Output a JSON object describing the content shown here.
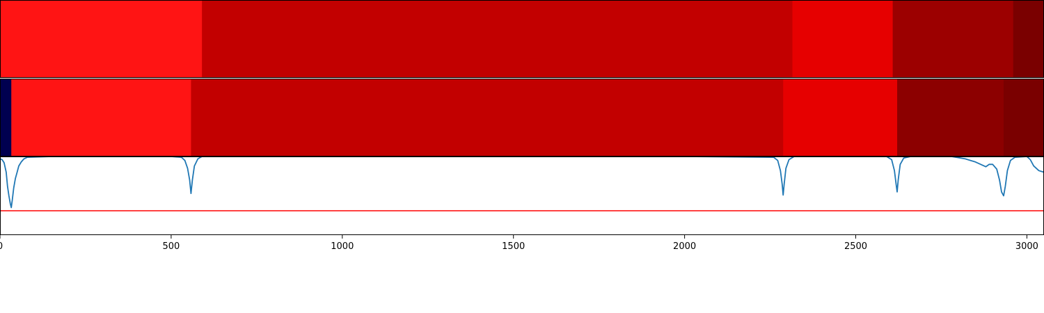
{
  "chart_data": {
    "type": "heatmap",
    "xlim": [
      0,
      3050
    ],
    "x_ticks": [
      0,
      500,
      1000,
      1500,
      2000,
      2500,
      3000
    ],
    "x_tick_labels": [
      "0",
      "500",
      "1000",
      "1500",
      "2000",
      "2500",
      "3000"
    ],
    "segment_rows": [
      {
        "segments": [
          {
            "start": 0,
            "end": 590,
            "color": "#ff1414"
          },
          {
            "start": 590,
            "end": 2315,
            "color": "#c20000"
          },
          {
            "start": 2315,
            "end": 2608,
            "color": "#e60000"
          },
          {
            "start": 2608,
            "end": 2960,
            "color": "#9c0000"
          },
          {
            "start": 2960,
            "end": 3050,
            "color": "#7a0000"
          }
        ]
      },
      {
        "segments": [
          {
            "start": 0,
            "end": 33,
            "color": "#000050"
          },
          {
            "start": 33,
            "end": 558,
            "color": "#ff1414"
          },
          {
            "start": 558,
            "end": 2288,
            "color": "#c20000"
          },
          {
            "start": 2288,
            "end": 2621,
            "color": "#e60000"
          },
          {
            "start": 2621,
            "end": 2932,
            "color": "#8c0000"
          },
          {
            "start": 2932,
            "end": 3050,
            "color": "#7a0000"
          }
        ]
      }
    ],
    "signal": {
      "color": "#1f77b4",
      "ylim": [
        0,
        1
      ],
      "threshold": 0.31,
      "threshold_color": "#ff0000",
      "points": [
        [
          0,
          0.97
        ],
        [
          6,
          0.96
        ],
        [
          12,
          0.92
        ],
        [
          18,
          0.8
        ],
        [
          22,
          0.62
        ],
        [
          26,
          0.5
        ],
        [
          30,
          0.4
        ],
        [
          33,
          0.35
        ],
        [
          36,
          0.45
        ],
        [
          40,
          0.6
        ],
        [
          45,
          0.72
        ],
        [
          50,
          0.8
        ],
        [
          55,
          0.88
        ],
        [
          62,
          0.93
        ],
        [
          70,
          0.97
        ],
        [
          80,
          0.99
        ],
        [
          150,
          1.0
        ],
        [
          300,
          1.0
        ],
        [
          500,
          1.0
        ],
        [
          530,
          0.99
        ],
        [
          540,
          0.95
        ],
        [
          548,
          0.85
        ],
        [
          554,
          0.7
        ],
        [
          558,
          0.53
        ],
        [
          562,
          0.7
        ],
        [
          568,
          0.88
        ],
        [
          578,
          0.97
        ],
        [
          590,
          1.0
        ],
        [
          1000,
          1.0
        ],
        [
          1500,
          1.0
        ],
        [
          2000,
          1.0
        ],
        [
          2260,
          0.99
        ],
        [
          2272,
          0.95
        ],
        [
          2280,
          0.82
        ],
        [
          2285,
          0.65
        ],
        [
          2288,
          0.51
        ],
        [
          2291,
          0.65
        ],
        [
          2296,
          0.85
        ],
        [
          2305,
          0.96
        ],
        [
          2320,
          1.0
        ],
        [
          2590,
          1.0
        ],
        [
          2605,
          0.96
        ],
        [
          2613,
          0.82
        ],
        [
          2618,
          0.65
        ],
        [
          2621,
          0.55
        ],
        [
          2624,
          0.7
        ],
        [
          2630,
          0.9
        ],
        [
          2640,
          0.98
        ],
        [
          2660,
          1.0
        ],
        [
          2780,
          1.0
        ],
        [
          2820,
          0.97
        ],
        [
          2850,
          0.93
        ],
        [
          2870,
          0.89
        ],
        [
          2880,
          0.87
        ],
        [
          2890,
          0.9
        ],
        [
          2900,
          0.9
        ],
        [
          2912,
          0.84
        ],
        [
          2920,
          0.7
        ],
        [
          2926,
          0.55
        ],
        [
          2932,
          0.5
        ],
        [
          2937,
          0.62
        ],
        [
          2943,
          0.82
        ],
        [
          2952,
          0.95
        ],
        [
          2965,
          0.99
        ],
        [
          3000,
          1.0
        ],
        [
          3010,
          0.96
        ],
        [
          3020,
          0.88
        ],
        [
          3035,
          0.82
        ],
        [
          3050,
          0.8
        ]
      ]
    }
  }
}
